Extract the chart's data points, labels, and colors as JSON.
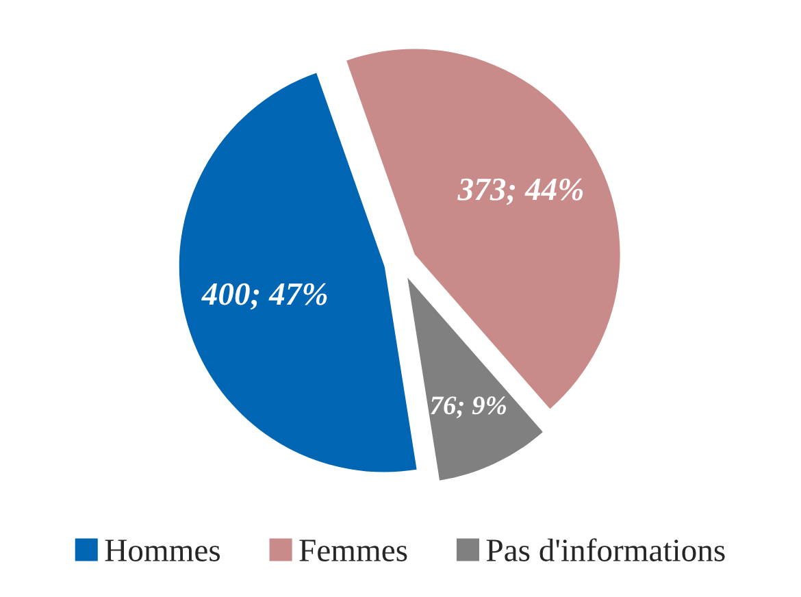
{
  "chart_data": {
    "type": "pie",
    "categories": [
      "Hommes",
      "Femmes",
      "Pas d'informations"
    ],
    "values": [
      400,
      373,
      76
    ],
    "value_labels": [
      "400; 47%",
      "373; 44%",
      "76; 9%"
    ],
    "colors": [
      "#0066b3",
      "#c98a8a",
      "#808080"
    ],
    "legend": "bottom"
  }
}
